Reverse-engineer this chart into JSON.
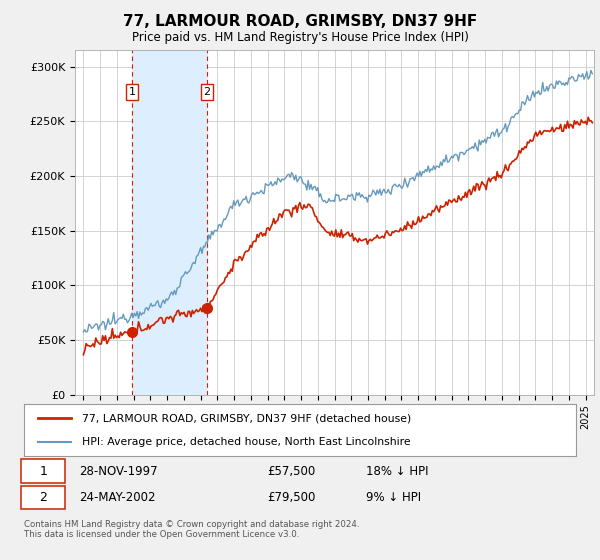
{
  "title": "77, LARMOUR ROAD, GRIMSBY, DN37 9HF",
  "subtitle": "Price paid vs. HM Land Registry's House Price Index (HPI)",
  "ylabel_ticks": [
    "£0",
    "£50K",
    "£100K",
    "£150K",
    "£200K",
    "£250K",
    "£300K"
  ],
  "ytick_values": [
    0,
    50000,
    100000,
    150000,
    200000,
    250000,
    300000
  ],
  "ylim": [
    0,
    315000
  ],
  "xlim_start": 1994.5,
  "xlim_end": 2025.5,
  "sale1_x": 1997.91,
  "sale1_y": 57500,
  "sale2_x": 2002.39,
  "sale2_y": 79500,
  "sale1_label": "28-NOV-1997",
  "sale1_price": "£57,500",
  "sale1_hpi": "18% ↓ HPI",
  "sale2_label": "24-MAY-2002",
  "sale2_price": "£79,500",
  "sale2_hpi": "9% ↓ HPI",
  "legend_line1": "77, LARMOUR ROAD, GRIMSBY, DN37 9HF (detached house)",
  "legend_line2": "HPI: Average price, detached house, North East Lincolnshire",
  "footer": "Contains HM Land Registry data © Crown copyright and database right 2024.\nThis data is licensed under the Open Government Licence v3.0.",
  "bg_color": "#f0f0f0",
  "plot_bg": "#ffffff",
  "red_color": "#cc2200",
  "blue_color": "#6699bb",
  "shade_color": "#ddeeff",
  "grid_color": "#cccccc"
}
